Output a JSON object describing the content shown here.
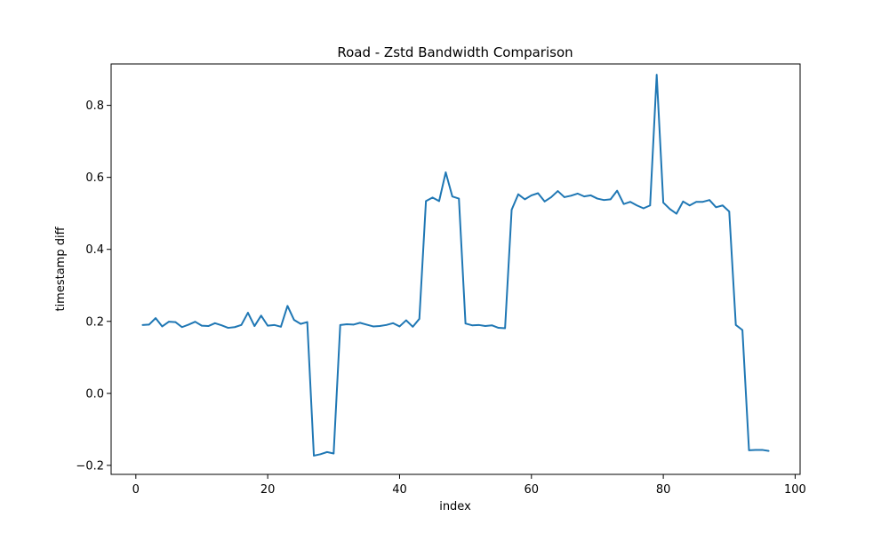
{
  "chart_data": {
    "type": "line",
    "title": "Road - Zstd Bandwidth Comparison",
    "xlabel": "index",
    "ylabel": "timestamp diff",
    "xlim": [
      -3.75,
      100.75
    ],
    "ylim": [
      -0.225,
      0.915
    ],
    "xticks": [
      0,
      20,
      40,
      60,
      80,
      100
    ],
    "yticks": [
      -0.2,
      0.0,
      0.2,
      0.4,
      0.6,
      0.8
    ],
    "xtick_labels": [
      "0",
      "20",
      "40",
      "60",
      "80",
      "100"
    ],
    "ytick_labels": [
      "−0.2",
      "0.0",
      "0.2",
      "0.4",
      "0.6",
      "0.8"
    ],
    "grid": false,
    "series": [
      {
        "color": "#1f77b4",
        "x": [
          1,
          2,
          3,
          4,
          5,
          6,
          7,
          8,
          9,
          10,
          11,
          12,
          13,
          14,
          15,
          16,
          17,
          18,
          19,
          20,
          21,
          22,
          23,
          24,
          25,
          26,
          27,
          28,
          29,
          30,
          31,
          32,
          33,
          34,
          35,
          36,
          37,
          38,
          39,
          40,
          41,
          42,
          43,
          44,
          45,
          46,
          47,
          48,
          49,
          50,
          51,
          52,
          53,
          54,
          55,
          56,
          57,
          58,
          59,
          60,
          61,
          62,
          63,
          64,
          65,
          66,
          67,
          68,
          69,
          70,
          71,
          72,
          73,
          74,
          75,
          76,
          77,
          78,
          79,
          80,
          81,
          82,
          83,
          84,
          85,
          86,
          87,
          88,
          89,
          90,
          91,
          92,
          93,
          94,
          95,
          96
        ],
        "y": [
          0.19,
          0.191,
          0.209,
          0.186,
          0.199,
          0.198,
          0.184,
          0.191,
          0.199,
          0.188,
          0.187,
          0.195,
          0.189,
          0.182,
          0.184,
          0.19,
          0.224,
          0.187,
          0.216,
          0.188,
          0.19,
          0.185,
          0.243,
          0.204,
          0.193,
          0.198,
          -0.173,
          -0.169,
          -0.163,
          -0.167,
          0.19,
          0.192,
          0.191,
          0.196,
          0.191,
          0.186,
          0.187,
          0.19,
          0.195,
          0.186,
          0.203,
          0.185,
          0.207,
          0.534,
          0.544,
          0.534,
          0.614,
          0.547,
          0.541,
          0.194,
          0.189,
          0.19,
          0.187,
          0.189,
          0.182,
          0.181,
          0.51,
          0.553,
          0.539,
          0.55,
          0.556,
          0.533,
          0.545,
          0.562,
          0.545,
          0.549,
          0.555,
          0.547,
          0.55,
          0.541,
          0.537,
          0.539,
          0.563,
          0.526,
          0.532,
          0.522,
          0.514,
          0.522,
          0.885,
          0.53,
          0.512,
          0.499,
          0.533,
          0.522,
          0.532,
          0.532,
          0.537,
          0.517,
          0.522,
          0.505,
          0.19,
          0.176,
          -0.158,
          -0.157,
          -0.157,
          -0.16
        ]
      }
    ]
  }
}
